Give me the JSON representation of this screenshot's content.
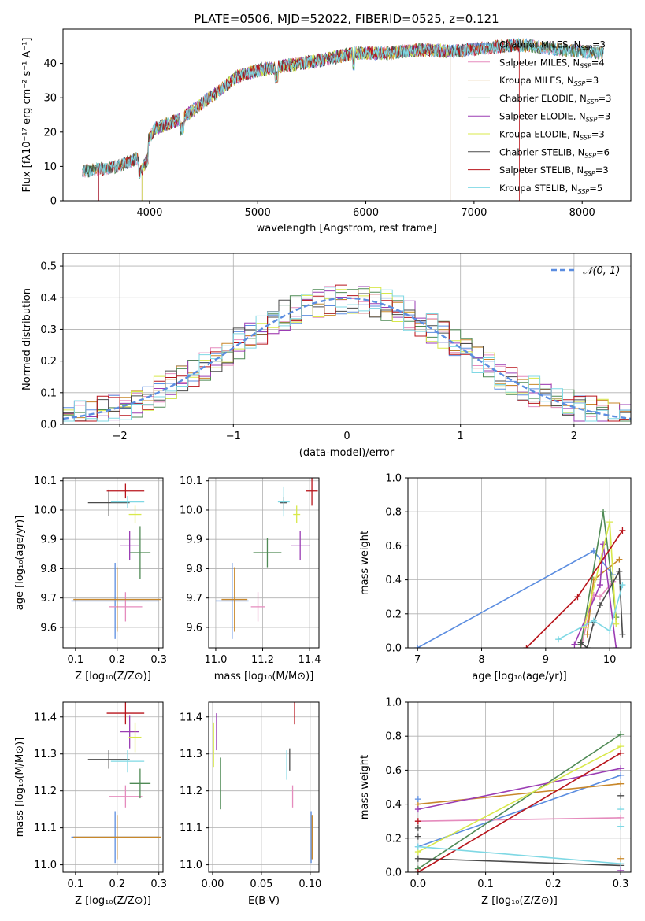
{
  "chart_data": [
    {
      "id": "spectrum",
      "type": "line",
      "title": "PLATE=0506, MJD=52022, FIBERID=0525, z=0.121",
      "xlabel": "wavelength [Angstrom, rest frame]",
      "ylabel": "Flux [fλ10⁻¹⁷ erg cm⁻² s⁻¹ A⁻¹]",
      "xlim": [
        3200,
        8450
      ],
      "ylim": [
        0,
        50
      ],
      "xticks": [
        4000,
        5000,
        6000,
        7000,
        8000
      ],
      "yticks": [
        0,
        10,
        20,
        30,
        40
      ],
      "grid": false,
      "legend_position": "top-right",
      "continuum_knots": {
        "x": [
          3380,
          3700,
          3900,
          4050,
          4300,
          4600,
          4800,
          5000,
          5300,
          5600,
          5900,
          6200,
          6500,
          6800,
          7100,
          7400,
          7800,
          8200
        ],
        "y": [
          8.5,
          10,
          12.5,
          21,
          24,
          31,
          36,
          38,
          39.5,
          41,
          43,
          43,
          44,
          43.5,
          44.5,
          45.5,
          44,
          43
        ]
      },
      "series": [
        {
          "label": "Chabrier MILES, N",
          "sub": "SSP",
          "suffix": "=3",
          "color": "#5b8de0"
        },
        {
          "label": "Salpeter MILES, N",
          "sub": "SSP",
          "suffix": "=4",
          "color": "#e58bbd"
        },
        {
          "label": "Kroupa MILES, N",
          "sub": "SSP",
          "suffix": "=3",
          "color": "#c8872a"
        },
        {
          "label": "Chabrier ELODIE, N",
          "sub": "SSP",
          "suffix": "=3",
          "color": "#4f8a55"
        },
        {
          "label": "Salpeter ELODIE, N",
          "sub": "SSP",
          "suffix": "=3",
          "color": "#9b3db4"
        },
        {
          "label": "Kroupa ELODIE, N",
          "sub": "SSP",
          "suffix": "=3",
          "color": "#d8e84a"
        },
        {
          "label": "Chabrier STELIB, N",
          "sub": "SSP",
          "suffix": "=6",
          "color": "#4a4a4a"
        },
        {
          "label": "Salpeter STELIB, N",
          "sub": "SSP",
          "suffix": "=3",
          "color": "#b8141b"
        },
        {
          "label": "Kroupa STELIB, N",
          "sub": "SSP",
          "suffix": "=5",
          "color": "#7fd8e4"
        }
      ]
    },
    {
      "id": "residuals",
      "type": "line",
      "xlabel": "(data-model)/error",
      "ylabel": "Normed distribution",
      "xlim": [
        -2.5,
        2.5
      ],
      "ylim": [
        0,
        0.54
      ],
      "xticks": [
        -2,
        -1,
        0,
        1,
        2
      ],
      "xtick_labels": [
        "−2",
        "−1",
        "0",
        "1",
        "2"
      ],
      "yticks": [
        0.0,
        0.1,
        0.2,
        0.3,
        0.4,
        0.5
      ],
      "ytick_labels": [
        "0.0",
        "0.1",
        "0.2",
        "0.3",
        "0.4",
        "0.5"
      ],
      "grid": true,
      "legend_position": "top-right",
      "reference_label": "N(0,1)",
      "reference_color": "#5b8de0",
      "bin_width": 0.1
    },
    {
      "id": "age_vs_Z",
      "type": "scatter",
      "xlabel": "Z [log₁₀(Z/Z⊙)]",
      "ylabel": "age  [log₁₀(age/yr)]",
      "xlim": [
        0.07,
        0.31
      ],
      "ylim": [
        9.53,
        10.11
      ],
      "xticks": [
        0.1,
        0.2,
        0.3
      ],
      "xtick_labels": [
        "0.1",
        "0.2",
        "0.3"
      ],
      "yticks": [
        9.6,
        9.7,
        9.8,
        9.9,
        10.0,
        10.1
      ],
      "ytick_labels": [
        "9.6",
        "9.7",
        "9.8",
        "9.9",
        "10.0",
        "10.1"
      ],
      "grid": true,
      "points": [
        {
          "color": "#5b8de0",
          "x": 0.195,
          "y": 9.69,
          "xerr": 0.105,
          "yerr": 0.13
        },
        {
          "color": "#e58bbd",
          "x": 0.22,
          "y": 9.67,
          "xerr": 0.04,
          "yerr": 0.05
        },
        {
          "color": "#c8872a",
          "x": 0.2,
          "y": 9.695,
          "xerr": 0.105,
          "yerr": 0.11
        },
        {
          "color": "#4f8a55",
          "x": 0.255,
          "y": 9.855,
          "xerr": 0.025,
          "yerr": 0.09
        },
        {
          "color": "#9b3db4",
          "x": 0.23,
          "y": 9.878,
          "xerr": 0.022,
          "yerr": 0.05
        },
        {
          "color": "#d8e84a",
          "x": 0.243,
          "y": 9.985,
          "xerr": 0.015,
          "yerr": 0.03
        },
        {
          "color": "#4a4a4a",
          "x": 0.18,
          "y": 10.025,
          "xerr": 0.05,
          "yerr": 0.045
        },
        {
          "color": "#b8141b",
          "x": 0.22,
          "y": 10.065,
          "xerr": 0.045,
          "yerr": 0.025
        },
        {
          "color": "#7fd8e4",
          "x": 0.225,
          "y": 10.028,
          "xerr": 0.04,
          "yerr": 0.02
        }
      ]
    },
    {
      "id": "age_vs_mass",
      "type": "scatter",
      "xlabel": "mass [log₁₀(M/M⊙)]",
      "xlim": [
        10.97,
        11.44
      ],
      "ylim": [
        9.53,
        10.11
      ],
      "xticks": [
        11.0,
        11.2,
        11.4
      ],
      "xtick_labels": [
        "11.0",
        "11.2",
        "11.4"
      ],
      "yticks": [
        9.6,
        9.7,
        9.8,
        9.9,
        10.0,
        10.1
      ],
      "ytick_labels": [
        "9.6",
        "9.7",
        "9.8",
        "9.9",
        "10.0",
        "10.1"
      ],
      "grid": true,
      "points": [
        {
          "color": "#5b8de0",
          "x": 11.07,
          "y": 9.69,
          "xerr": 0.07,
          "yerr": 0.13
        },
        {
          "color": "#e58bbd",
          "x": 11.18,
          "y": 9.67,
          "xerr": 0.03,
          "yerr": 0.05
        },
        {
          "color": "#c8872a",
          "x": 11.08,
          "y": 9.695,
          "xerr": 0.055,
          "yerr": 0.11
        },
        {
          "color": "#4f8a55",
          "x": 11.22,
          "y": 9.855,
          "xerr": 0.06,
          "yerr": 0.05
        },
        {
          "color": "#9b3db4",
          "x": 11.36,
          "y": 9.878,
          "xerr": 0.04,
          "yerr": 0.05
        },
        {
          "color": "#d8e84a",
          "x": 11.345,
          "y": 9.985,
          "xerr": 0.015,
          "yerr": 0.03
        },
        {
          "color": "#4a4a4a",
          "x": 11.29,
          "y": 10.025,
          "xerr": 0.015,
          "yerr": 0.02
        },
        {
          "color": "#b8141b",
          "x": 11.41,
          "y": 10.065,
          "xerr": 0.025,
          "yerr": 0.05
        },
        {
          "color": "#7fd8e4",
          "x": 11.29,
          "y": 10.028,
          "xerr": 0.025,
          "yerr": 0.05
        }
      ]
    },
    {
      "id": "weight_vs_age",
      "type": "line",
      "xlabel": "age  [log₁₀(age/yr)]",
      "ylabel": "mass weight",
      "xlim": [
        6.85,
        10.33
      ],
      "ylim": [
        0,
        1.0
      ],
      "xticks": [
        7,
        8,
        9,
        10
      ],
      "xtick_labels": [
        "7",
        "8",
        "9",
        "10"
      ],
      "yticks": [
        0.0,
        0.2,
        0.4,
        0.6,
        0.8,
        1.0
      ],
      "ytick_labels": [
        "0.0",
        "0.2",
        "0.4",
        "0.6",
        "0.8",
        "1.0"
      ],
      "grid": true,
      "series": [
        {
          "color": "#5b8de0",
          "x": [
            7.0,
            9.75,
            10.05
          ],
          "y": [
            0.0,
            0.57,
            0.43
          ]
        },
        {
          "color": "#e58bbd",
          "x": [
            9.55,
            9.75,
            9.85,
            10.05
          ],
          "y": [
            0.0,
            0.31,
            0.3,
            0.39
          ]
        },
        {
          "color": "#c8872a",
          "x": [
            9.65,
            9.75,
            10.15
          ],
          "y": [
            0.08,
            0.4,
            0.52
          ]
        },
        {
          "color": "#4f8a55",
          "x": [
            9.55,
            9.9,
            10.1
          ],
          "y": [
            0.02,
            0.8,
            0.18
          ]
        },
        {
          "color": "#9b3db4",
          "x": [
            9.45,
            9.85,
            9.9,
            10.1
          ],
          "y": [
            0.02,
            0.37,
            0.61,
            0.0
          ]
        },
        {
          "color": "#d8e84a",
          "x": [
            9.6,
            10.0,
            10.1
          ],
          "y": [
            0.12,
            0.74,
            0.14
          ]
        },
        {
          "color": "#4a4a4a",
          "x": [
            9.55,
            9.65,
            9.75,
            9.85,
            10.15,
            10.2
          ],
          "y": [
            0.03,
            0.0,
            0.15,
            0.25,
            0.45,
            0.08
          ]
        },
        {
          "color": "#b8141b",
          "x": [
            8.7,
            9.5,
            10.2
          ],
          "y": [
            0.0,
            0.3,
            0.69
          ]
        },
        {
          "color": "#7fd8e4",
          "x": [
            9.2,
            9.75,
            10.0,
            10.2
          ],
          "y": [
            0.05,
            0.16,
            0.1,
            0.37
          ]
        }
      ]
    },
    {
      "id": "mass_vs_Z",
      "type": "scatter",
      "xlabel": "Z [log₁₀(Z/Z⊙)]",
      "ylabel": "mass [log₁₀(M/M⊙)]",
      "xlim": [
        0.07,
        0.31
      ],
      "ylim": [
        10.98,
        11.44
      ],
      "xticks": [
        0.1,
        0.2,
        0.3
      ],
      "xtick_labels": [
        "0.1",
        "0.2",
        "0.3"
      ],
      "yticks": [
        11.0,
        11.1,
        11.2,
        11.3,
        11.4
      ],
      "ytick_labels": [
        "11.0",
        "11.1",
        "11.2",
        "11.3",
        "11.4"
      ],
      "grid": true,
      "points": [
        {
          "color": "#5b8de0",
          "x": 0.195,
          "y": 11.075,
          "xerr": 0.105,
          "yerr": 0.07
        },
        {
          "color": "#e58bbd",
          "x": 0.22,
          "y": 11.185,
          "xerr": 0.04,
          "yerr": 0.03
        },
        {
          "color": "#c8872a",
          "x": 0.2,
          "y": 11.075,
          "xerr": 0.105,
          "yerr": 0.06
        },
        {
          "color": "#4f8a55",
          "x": 0.255,
          "y": 11.22,
          "xerr": 0.025,
          "yerr": 0.04
        },
        {
          "color": "#9b3db4",
          "x": 0.23,
          "y": 11.36,
          "xerr": 0.022,
          "yerr": 0.045
        },
        {
          "color": "#d8e84a",
          "x": 0.243,
          "y": 11.345,
          "xerr": 0.015,
          "yerr": 0.04
        },
        {
          "color": "#4a4a4a",
          "x": 0.18,
          "y": 11.285,
          "xerr": 0.05,
          "yerr": 0.025
        },
        {
          "color": "#b8141b",
          "x": 0.22,
          "y": 11.41,
          "xerr": 0.045,
          "yerr": 0.03
        },
        {
          "color": "#7fd8e4",
          "x": 0.225,
          "y": 11.28,
          "xerr": 0.04,
          "yerr": 0.03
        }
      ]
    },
    {
      "id": "mass_vs_ebv",
      "type": "scatter",
      "xlabel": "E(B-V)",
      "xlim": [
        -0.004,
        0.109
      ],
      "ylim": [
        10.98,
        11.44
      ],
      "xticks": [
        0.0,
        0.05,
        0.1
      ],
      "xtick_labels": [
        "0.00",
        "0.05",
        "0.10"
      ],
      "yticks": [
        11.0,
        11.1,
        11.2,
        11.3,
        11.4
      ],
      "ytick_labels": [
        "11.0",
        "11.1",
        "11.2",
        "11.3",
        "11.4"
      ],
      "grid": true,
      "points": [
        {
          "color": "#5b8de0",
          "x": 0.101,
          "y": 11.075,
          "xerr": 0,
          "yerr": 0.07
        },
        {
          "color": "#e58bbd",
          "x": 0.082,
          "y": 11.185,
          "xerr": 0,
          "yerr": 0.03
        },
        {
          "color": "#c8872a",
          "x": 0.102,
          "y": 11.075,
          "xerr": 0,
          "yerr": 0.06
        },
        {
          "color": "#4f8a55",
          "x": 0.008,
          "y": 11.22,
          "xerr": 0,
          "yerr": 0.07
        },
        {
          "color": "#9b3db4",
          "x": 0.004,
          "y": 11.36,
          "xerr": 0,
          "yerr": 0.05
        },
        {
          "color": "#d8e84a",
          "x": 0.001,
          "y": 11.325,
          "xerr": 0,
          "yerr": 0.06
        },
        {
          "color": "#4a4a4a",
          "x": 0.079,
          "y": 11.285,
          "xerr": 0,
          "yerr": 0.03
        },
        {
          "color": "#b8141b",
          "x": 0.084,
          "y": 11.41,
          "xerr": 0,
          "yerr": 0.03
        },
        {
          "color": "#7fd8e4",
          "x": 0.076,
          "y": 11.27,
          "xerr": 0,
          "yerr": 0.04
        }
      ]
    },
    {
      "id": "weight_vs_Z",
      "type": "line",
      "xlabel": "Z [log₁₀(Z/Z⊙)]",
      "ylabel": "mass weight",
      "xlim": [
        -0.015,
        0.315
      ],
      "ylim": [
        0,
        1.0
      ],
      "xticks": [
        0.0,
        0.1,
        0.2,
        0.3
      ],
      "xtick_labels": [
        "0.0",
        "0.1",
        "0.2",
        "0.3"
      ],
      "yticks": [
        0.0,
        0.2,
        0.4,
        0.6,
        0.8,
        1.0
      ],
      "ytick_labels": [
        "0.0",
        "0.2",
        "0.4",
        "0.6",
        "0.8",
        "1.0"
      ],
      "grid": true,
      "series": [
        {
          "color": "#5b8de0",
          "x": [
            0.0,
            0.3
          ],
          "y": [
            0.15,
            0.57
          ]
        },
        {
          "color": "#e58bbd",
          "x": [
            0.0,
            0.3
          ],
          "y": [
            0.3,
            0.32
          ]
        },
        {
          "color": "#c8872a",
          "x": [
            0.0,
            0.3
          ],
          "y": [
            0.4,
            0.52
          ]
        },
        {
          "color": "#4f8a55",
          "x": [
            0.0,
            0.3
          ],
          "y": [
            0.02,
            0.81
          ]
        },
        {
          "color": "#9b3db4",
          "x": [
            0.0,
            0.3
          ],
          "y": [
            0.37,
            0.61
          ]
        },
        {
          "color": "#d8e84a",
          "x": [
            0.0,
            0.3
          ],
          "y": [
            0.12,
            0.74
          ]
        },
        {
          "color": "#4a4a4a",
          "x": [
            0.0,
            0.3
          ],
          "y": [
            0.08,
            0.04
          ]
        },
        {
          "color": "#b8141b",
          "x": [
            0.0,
            0.3
          ],
          "y": [
            0.0,
            0.7
          ]
        },
        {
          "color": "#7fd8e4",
          "x": [
            0.0,
            0.3
          ],
          "y": [
            0.15,
            0.05
          ]
        }
      ],
      "markers": [
        {
          "color": "#5b8de0",
          "x": 0.0,
          "y": 0.43
        },
        {
          "color": "#4a4a4a",
          "x": 0.0,
          "y": 0.21
        },
        {
          "color": "#4a4a4a",
          "x": 0.0,
          "y": 0.26
        },
        {
          "color": "#b8141b",
          "x": 0.0,
          "y": 0.3
        },
        {
          "color": "#7fd8e4",
          "x": 0.3,
          "y": 0.37
        },
        {
          "color": "#4a4a4a",
          "x": 0.3,
          "y": 0.45
        },
        {
          "color": "#c8872a",
          "x": 0.3,
          "y": 0.08
        },
        {
          "color": "#9b3db4",
          "x": 0.3,
          "y": 0.01
        },
        {
          "color": "#7fd8e4",
          "x": 0.3,
          "y": 0.27
        }
      ]
    }
  ]
}
